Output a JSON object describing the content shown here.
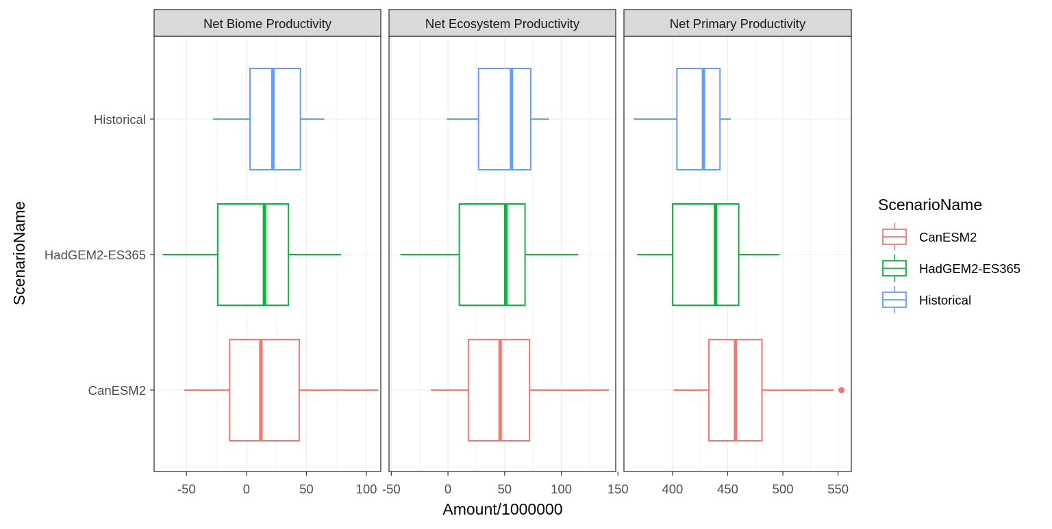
{
  "chart_data": {
    "type": "boxplot",
    "xlabel": "Amount/1000000",
    "ylabel": "ScenarioName",
    "categories": [
      "CanESM2",
      "HadGEM2-ES365",
      "Historical"
    ],
    "legend": {
      "title": "ScenarioName",
      "placement": "right",
      "entries": [
        "CanESM2",
        "HadGEM2-ES365",
        "Historical"
      ]
    },
    "colors": {
      "CanESM2": "#F8766D",
      "HadGEM2-ES365": "#00BA38",
      "Historical": "#619CFF"
    },
    "grid": true,
    "panels": [
      {
        "title": "Net Biome Productivity",
        "xlim": [
          -77,
          112
        ],
        "ticks": [
          -50,
          0,
          50,
          100
        ],
        "tick_labels": [
          "-50",
          "0",
          "50",
          "100"
        ],
        "series": [
          {
            "name": "CanESM2",
            "min": -52,
            "q1": -14,
            "median": 12,
            "q3": 44,
            "max": 110,
            "outliers": []
          },
          {
            "name": "HadGEM2-ES365",
            "min": -70,
            "q1": -24,
            "median": 15,
            "q3": 35,
            "max": 79,
            "outliers": []
          },
          {
            "name": "Historical",
            "min": -28,
            "q1": 3,
            "median": 22,
            "q3": 45,
            "max": 65,
            "outliers": []
          }
        ]
      },
      {
        "title": "Net Ecosystem Productivity",
        "xlim": [
          -52,
          148
        ],
        "ticks": [
          -50,
          0,
          50,
          100,
          150
        ],
        "tick_labels": [
          "-50",
          "0",
          "50",
          "100",
          "150"
        ],
        "series": [
          {
            "name": "CanESM2",
            "min": -15,
            "q1": 18,
            "median": 46,
            "q3": 72,
            "max": 142,
            "outliers": []
          },
          {
            "name": "HadGEM2-ES365",
            "min": -42,
            "q1": 10,
            "median": 51,
            "q3": 68,
            "max": 115,
            "outliers": []
          },
          {
            "name": "Historical",
            "min": -1,
            "q1": 27,
            "median": 56,
            "q3": 73,
            "max": 89,
            "outliers": []
          }
        ]
      },
      {
        "title": "Net Primary Productivity",
        "xlim": [
          356,
          562
        ],
        "ticks": [
          400,
          450,
          500,
          550
        ],
        "tick_labels": [
          "400",
          "450",
          "500",
          "550"
        ],
        "series": [
          {
            "name": "CanESM2",
            "min": 401,
            "q1": 433,
            "median": 457,
            "q3": 481,
            "max": 546,
            "outliers": [
              553
            ]
          },
          {
            "name": "HadGEM2-ES365",
            "min": 368,
            "q1": 400,
            "median": 439,
            "q3": 460,
            "max": 497,
            "outliers": []
          },
          {
            "name": "Historical",
            "min": 365,
            "q1": 404,
            "median": 428,
            "q3": 443,
            "max": 453,
            "outliers": []
          }
        ]
      }
    ]
  }
}
